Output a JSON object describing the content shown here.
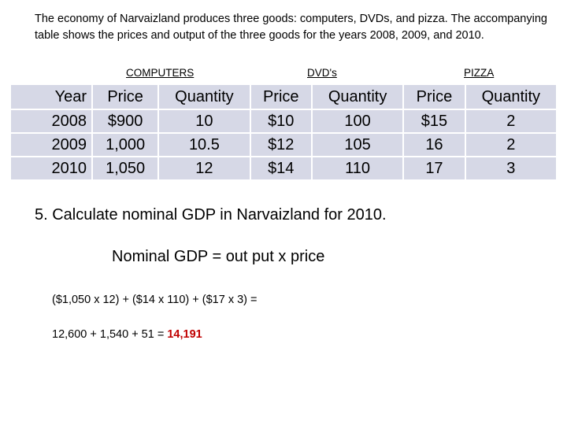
{
  "intro": "The economy of Narvaizland produces three goods: computers, DVDs, and pizza.  The accompanying table shows the prices and output of the three goods for the years 2008, 2009, and 2010.",
  "categories": {
    "computers": "COMPUTERS",
    "dvds": "DVD's",
    "pizza": "PIZZA"
  },
  "table": {
    "headers": [
      "Year",
      "Price",
      "Quantity",
      "Price",
      "Quantity",
      "Price",
      "Quantity"
    ],
    "rows": [
      [
        "2008",
        "$900",
        "10",
        "$10",
        "100",
        "$15",
        "2"
      ],
      [
        "2009",
        "1,000",
        "10.5",
        "$12",
        "105",
        "16",
        "2"
      ],
      [
        "2010",
        "1,050",
        "12",
        "$14",
        "110",
        "17",
        "3"
      ]
    ]
  },
  "question": "5.  Calculate nominal GDP in Narvaizland for 2010.",
  "formula": "Nominal GDP = out put  x  price",
  "calculation": {
    "line1": "($1,050 x 12)  +  ($14 x 110)  +  ($17 x 3) =",
    "line2_prefix": "12,600 + 1,540  +  51 = ",
    "result": "14,191"
  }
}
